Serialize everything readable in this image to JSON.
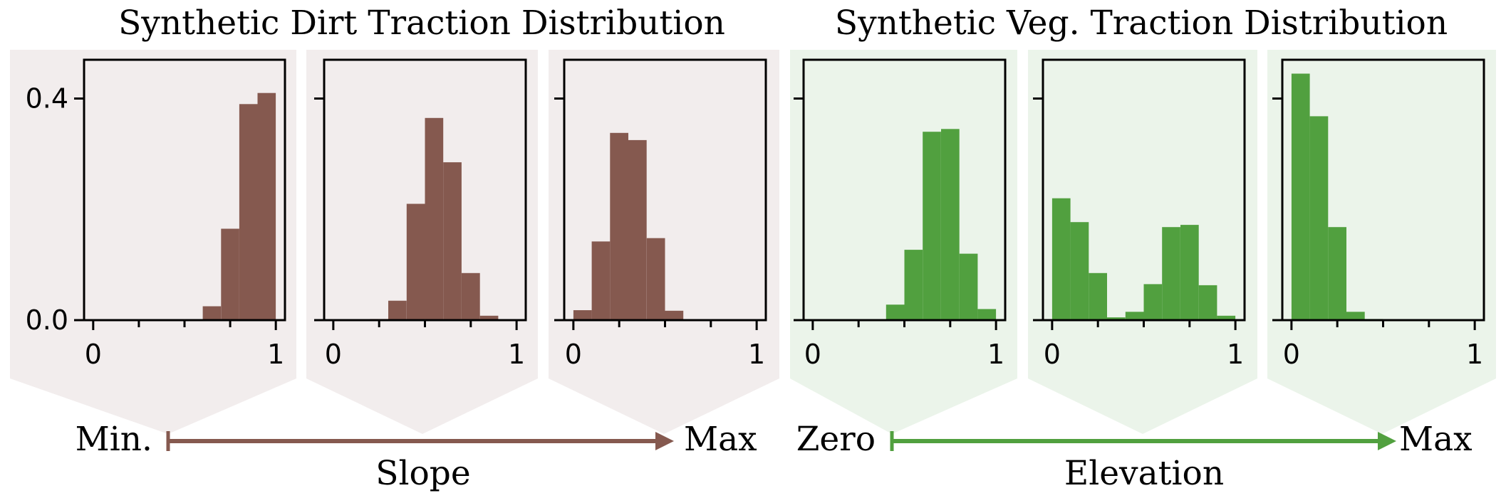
{
  "titles": {
    "dirt": "Synthetic Dirt Traction Distribution",
    "veg": "Synthetic Veg. Traction Distribution"
  },
  "axes": {
    "dirt": {
      "label": "Slope",
      "start": "Min.",
      "end": "Max"
    },
    "veg": {
      "label": "Elevation",
      "start": "Zero",
      "end": "Max"
    }
  },
  "colors": {
    "dirt_bar": "#85594f",
    "veg_bar": "#51a03f",
    "dirt_panel": "#f2eded",
    "veg_panel": "#ebf4ea",
    "dirt_arrow": "#85594f",
    "veg_arrow": "#51a03f"
  },
  "chart_data": [
    {
      "type": "bar",
      "group": "dirt",
      "bin_edges": [
        0.0,
        0.1,
        0.2,
        0.3,
        0.4,
        0.5,
        0.6,
        0.7,
        0.8,
        0.9,
        1.0
      ],
      "values": [
        0.0,
        0.0,
        0.0,
        0.0,
        0.0,
        0.0,
        0.025,
        0.165,
        0.39,
        0.41
      ],
      "xlim": [
        -0.05,
        1.05
      ],
      "ylim": [
        0,
        0.47
      ],
      "xticks": [
        0,
        1
      ],
      "yticks": [
        0.0,
        0.4
      ],
      "xtick_labels": [
        "0",
        "1"
      ],
      "ytick_labels": [
        "0.0",
        "0.4"
      ]
    },
    {
      "type": "bar",
      "group": "dirt",
      "bin_edges": [
        0.0,
        0.1,
        0.2,
        0.3,
        0.4,
        0.5,
        0.6,
        0.7,
        0.8,
        0.9,
        1.0
      ],
      "values": [
        0.0,
        0.0,
        0.002,
        0.035,
        0.21,
        0.365,
        0.285,
        0.085,
        0.008,
        0.0
      ],
      "xlim": [
        -0.05,
        1.05
      ],
      "ylim": [
        0,
        0.47
      ],
      "xticks": [
        0,
        1
      ],
      "yticks": [
        0.0,
        0.4
      ],
      "xtick_labels": [
        "0",
        "1"
      ],
      "ytick_labels": []
    },
    {
      "type": "bar",
      "group": "dirt",
      "bin_edges": [
        0.0,
        0.1,
        0.2,
        0.3,
        0.4,
        0.5,
        0.6,
        0.7,
        0.8,
        0.9,
        1.0
      ],
      "values": [
        0.018,
        0.142,
        0.338,
        0.325,
        0.148,
        0.017,
        0.0,
        0.0,
        0.0,
        0.0
      ],
      "xlim": [
        -0.05,
        1.05
      ],
      "ylim": [
        0,
        0.47
      ],
      "xticks": [
        0,
        1
      ],
      "yticks": [
        0.0,
        0.4
      ],
      "xtick_labels": [
        "0",
        "1"
      ],
      "ytick_labels": []
    },
    {
      "type": "bar",
      "group": "veg",
      "bin_edges": [
        0.0,
        0.1,
        0.2,
        0.3,
        0.4,
        0.5,
        0.6,
        0.7,
        0.8,
        0.9,
        1.0
      ],
      "values": [
        0.0,
        0.0,
        0.0,
        0.0,
        0.028,
        0.127,
        0.34,
        0.345,
        0.12,
        0.02
      ],
      "xlim": [
        -0.05,
        1.05
      ],
      "ylim": [
        0,
        0.47
      ],
      "xticks": [
        0,
        1
      ],
      "yticks": [
        0.0,
        0.4
      ],
      "xtick_labels": [
        "0",
        "1"
      ],
      "ytick_labels": []
    },
    {
      "type": "bar",
      "group": "veg",
      "bin_edges": [
        0.0,
        0.1,
        0.2,
        0.3,
        0.4,
        0.5,
        0.6,
        0.7,
        0.8,
        0.9,
        1.0
      ],
      "values": [
        0.22,
        0.177,
        0.085,
        0.005,
        0.015,
        0.065,
        0.168,
        0.172,
        0.063,
        0.008
      ],
      "xlim": [
        -0.05,
        1.05
      ],
      "ylim": [
        0,
        0.47
      ],
      "xticks": [
        0,
        1
      ],
      "yticks": [
        0.0,
        0.4
      ],
      "xtick_labels": [
        "0",
        "1"
      ],
      "ytick_labels": []
    },
    {
      "type": "bar",
      "group": "veg",
      "bin_edges": [
        0.0,
        0.1,
        0.2,
        0.3,
        0.4,
        0.5,
        0.6,
        0.7,
        0.8,
        0.9,
        1.0
      ],
      "values": [
        0.445,
        0.368,
        0.168,
        0.015,
        0.002,
        0.0,
        0.0,
        0.0,
        0.0,
        0.0
      ],
      "xlim": [
        -0.05,
        1.05
      ],
      "ylim": [
        0,
        0.47
      ],
      "xticks": [
        0,
        1
      ],
      "yticks": [
        0.0,
        0.4
      ],
      "xtick_labels": [
        "0",
        "1"
      ],
      "ytick_labels": []
    }
  ]
}
